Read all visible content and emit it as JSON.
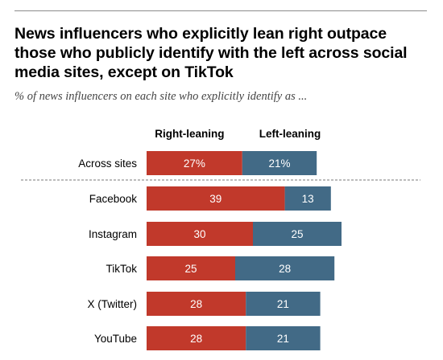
{
  "title": "News influencers who explicitly lean right outpace\nthose who publicly identify with the left across social\nmedia sites, except on TikTok",
  "subtitle": "% of news influencers on each site who explicitly identify as ...",
  "colors": {
    "right": "#c1392b",
    "left": "#426a86",
    "divider": "#7a7a7a"
  },
  "chart_data": {
    "type": "bar",
    "orientation": "horizontal",
    "stacked": true,
    "categories": [
      "Across sites",
      "Facebook",
      "Instagram",
      "TikTok",
      "X (Twitter)",
      "YouTube"
    ],
    "series": [
      {
        "name": "Right-leaning",
        "values": [
          27,
          39,
          30,
          25,
          28,
          28
        ],
        "labels": [
          "27%",
          "39",
          "30",
          "25",
          "28",
          "28"
        ]
      },
      {
        "name": "Left-leaning",
        "values": [
          21,
          13,
          25,
          28,
          21,
          21
        ],
        "labels": [
          "21%",
          "13",
          "25",
          "28",
          "21",
          "21"
        ]
      }
    ],
    "legend": "top"
  }
}
